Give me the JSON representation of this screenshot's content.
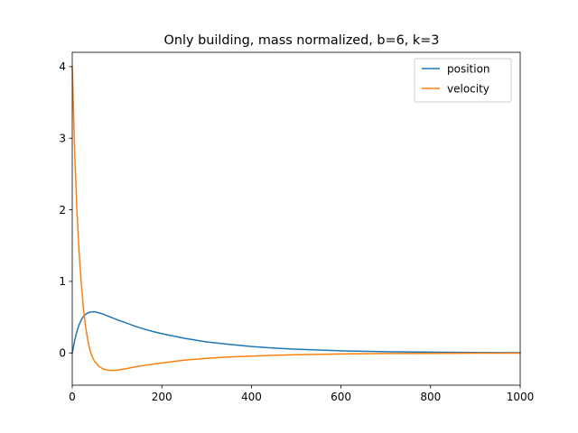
{
  "chart_data": {
    "type": "line",
    "title": "Only building, mass normalized, b=6, k=3",
    "xlabel": "",
    "ylabel": "",
    "xlim": [
      0,
      1000
    ],
    "ylim": [
      -0.45,
      4.2
    ],
    "xticks": [
      0,
      200,
      400,
      600,
      800,
      1000
    ],
    "yticks": [
      0,
      1,
      2,
      3,
      4
    ],
    "grid": false,
    "legend_position": "top-right",
    "x": [
      0,
      5,
      10,
      15,
      20,
      25,
      30,
      35,
      40,
      45,
      50,
      60,
      70,
      80,
      90,
      100,
      120,
      140,
      160,
      180,
      200,
      250,
      300,
      350,
      400,
      450,
      500,
      600,
      700,
      800,
      900,
      1000
    ],
    "series": [
      {
        "name": "position",
        "color": "#1f77b4",
        "values": [
          0.0,
          0.16,
          0.29,
          0.39,
          0.46,
          0.51,
          0.54,
          0.56,
          0.57,
          0.575,
          0.575,
          0.56,
          0.54,
          0.515,
          0.49,
          0.465,
          0.42,
          0.375,
          0.335,
          0.3,
          0.27,
          0.205,
          0.155,
          0.12,
          0.09,
          0.068,
          0.052,
          0.03,
          0.018,
          0.011,
          0.006,
          0.004
        ]
      },
      {
        "name": "velocity",
        "color": "#ff7f0e",
        "values": [
          4.0,
          2.9,
          2.05,
          1.45,
          0.98,
          0.62,
          0.36,
          0.17,
          0.03,
          -0.06,
          -0.12,
          -0.19,
          -0.225,
          -0.24,
          -0.245,
          -0.24,
          -0.22,
          -0.195,
          -0.175,
          -0.155,
          -0.14,
          -0.1,
          -0.075,
          -0.057,
          -0.043,
          -0.032,
          -0.025,
          -0.014,
          -0.008,
          -0.005,
          -0.003,
          -0.002
        ]
      }
    ]
  }
}
